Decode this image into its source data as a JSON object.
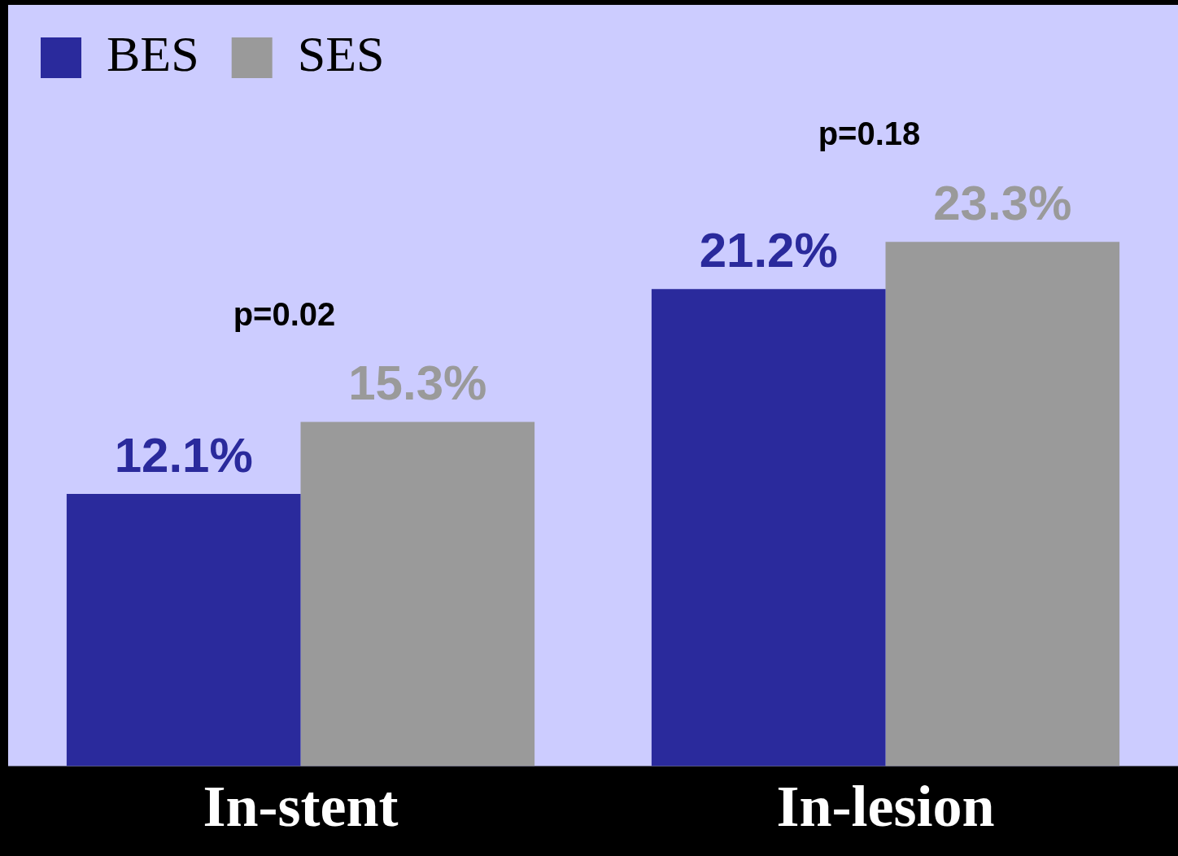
{
  "chart_data": {
    "type": "bar",
    "categories": [
      "In-stent",
      "In-lesion"
    ],
    "series": [
      {
        "name": "BES",
        "color": "#2a2a9c",
        "values": [
          12.1,
          21.2
        ],
        "value_labels": [
          "12.1%",
          "21.2%"
        ]
      },
      {
        "name": "SES",
        "color": "#9a9a9a",
        "values": [
          15.3,
          23.3
        ],
        "value_labels": [
          "15.3%",
          "23.3%"
        ]
      }
    ],
    "annotations": [
      "p=0.02",
      "p=0.18"
    ],
    "legend": "top left",
    "grid": false,
    "tick_labels": "x"
  }
}
